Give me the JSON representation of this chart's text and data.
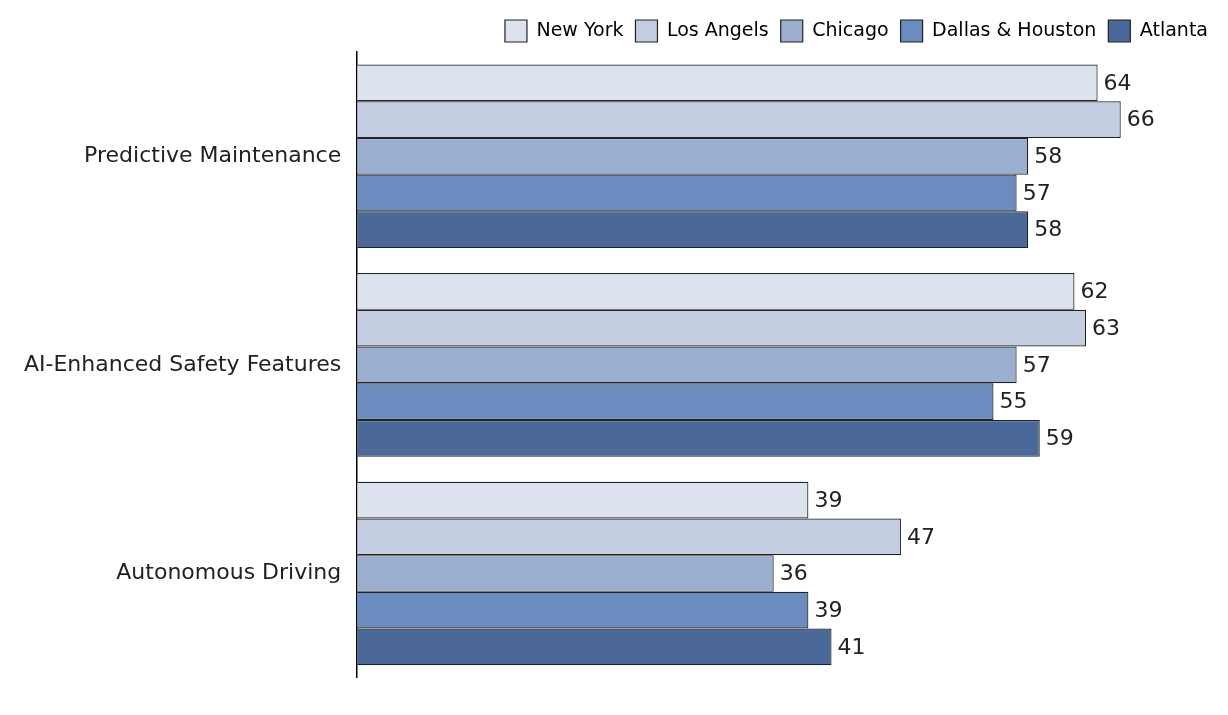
{
  "chart_data": {
    "type": "bar",
    "orientation": "horizontal",
    "categories": [
      "Predictive Maintenance",
      "AI-Enhanced Safety Features",
      "Autonomous Driving"
    ],
    "series": [
      {
        "name": "New York",
        "color": "#dde3ee",
        "values": [
          64,
          62,
          39
        ]
      },
      {
        "name": "Los Angels",
        "color": "#c3cee3",
        "values": [
          66,
          63,
          47
        ]
      },
      {
        "name": "Chicago",
        "color": "#9aafd0",
        "values": [
          58,
          57,
          36
        ]
      },
      {
        "name": "Dallas & Houston",
        "color": "#6b8cbf",
        "values": [
          57,
          55,
          39
        ]
      },
      {
        "name": "Atlanta",
        "color": "#4a6898",
        "values": [
          58,
          59,
          41
        ]
      }
    ],
    "data_labels": true,
    "legend": "top right"
  }
}
